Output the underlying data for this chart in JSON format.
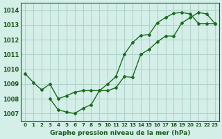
{
  "title": "Graphe pression niveau de la mer (hPa)",
  "line1_x": [
    0,
    1,
    2,
    3,
    4,
    5,
    6,
    7,
    8,
    9,
    10,
    11,
    12,
    13,
    14,
    15,
    16,
    17,
    18,
    19,
    20,
    21,
    22,
    23
  ],
  "line1_y": [
    1009.7,
    1009.1,
    1008.6,
    1009.0,
    1008.0,
    1008.2,
    1008.45,
    1008.55,
    1008.55,
    1008.55,
    1009.0,
    1009.5,
    1011.0,
    1011.8,
    1012.3,
    1012.35,
    1013.15,
    1013.5,
    1013.8,
    1013.85,
    1013.75,
    1013.1,
    1013.1,
    1013.1
  ],
  "line2_x": [
    3,
    4,
    5,
    6,
    7,
    8,
    9,
    10,
    11,
    12,
    13,
    14,
    15,
    16,
    17,
    18,
    19,
    20,
    21,
    22,
    23
  ],
  "line2_y": [
    1008.0,
    1007.25,
    1007.1,
    1007.0,
    1007.35,
    1007.6,
    1008.55,
    1008.55,
    1008.75,
    1009.5,
    1009.45,
    1011.0,
    1011.35,
    1011.85,
    1012.25,
    1012.25,
    1013.15,
    1013.5,
    1013.85,
    1013.75,
    1013.1
  ],
  "line_color": "#1a6b1a",
  "bg_color": "#d4eee8",
  "grid_color": "#b0d4cc",
  "text_color": "#1a5c1a",
  "ylim": [
    1006.5,
    1014.5
  ],
  "xlim": [
    -0.5,
    23.5
  ],
  "yticks": [
    1007,
    1008,
    1009,
    1010,
    1011,
    1012,
    1013,
    1014
  ],
  "xticks": [
    0,
    1,
    2,
    3,
    4,
    5,
    6,
    7,
    8,
    9,
    10,
    11,
    12,
    13,
    14,
    15,
    16,
    17,
    18,
    19,
    20,
    21,
    22,
    23
  ]
}
